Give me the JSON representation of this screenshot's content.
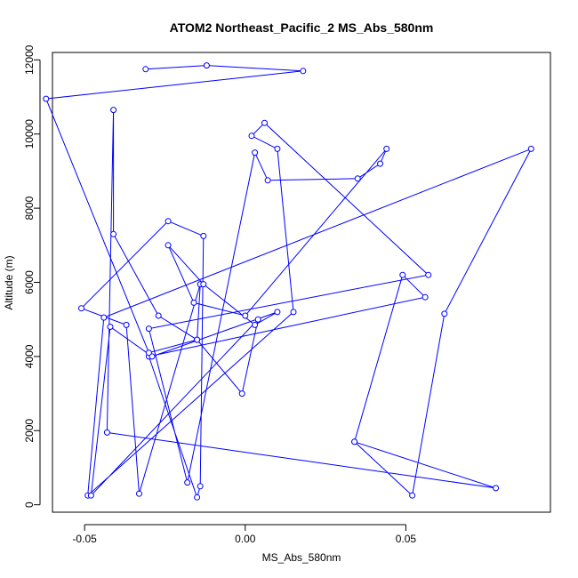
{
  "chart_data": {
    "type": "line",
    "title": "ATOM2 Northeast_Pacific_2 MS_Abs_580nm",
    "xlabel": "MS_Abs_580nm",
    "ylabel": "Altitude (m)",
    "xlim": [
      -0.06,
      0.095
    ],
    "ylim": [
      -200,
      12200
    ],
    "xticks": [
      -0.05,
      0.0,
      0.05
    ],
    "xtick_labels": [
      "-0.05",
      "0.00",
      "0.05"
    ],
    "yticks": [
      0,
      2000,
      4000,
      6000,
      8000,
      10000,
      12000
    ],
    "ytick_labels": [
      "0",
      "2000",
      "4000",
      "6000",
      "8000",
      "10000",
      "12000"
    ],
    "grid": false,
    "series": [
      {
        "color": "#0000ff",
        "marker": "open-circle",
        "x": [
          0.034,
          0.078,
          -0.043,
          -0.041,
          -0.041,
          -0.027,
          -0.015,
          -0.014,
          -0.033,
          -0.037,
          -0.051,
          -0.024,
          -0.013,
          -0.014,
          -0.015,
          -0.03,
          0.056,
          0.049,
          0.034,
          0.052,
          0.062,
          0.089,
          -0.044,
          -0.049,
          0.015,
          0.01,
          0.002,
          0.006,
          0.057,
          -0.03,
          -0.018,
          0.003,
          0.007,
          0.035,
          0.042,
          0.044,
          0.0,
          -0.016,
          -0.024,
          -0.013,
          0.003,
          0.01,
          -0.029,
          -0.042,
          -0.048,
          0.004,
          -0.001,
          -0.015,
          -0.03,
          -0.062,
          0.018,
          -0.012,
          -0.031
        ],
        "y": [
          1700,
          450,
          1950,
          10650,
          7300,
          5100,
          4450,
          5950,
          300,
          4850,
          5300,
          7650,
          7250,
          500,
          200,
          4000,
          5600,
          6200,
          1700,
          250,
          5150,
          9600,
          5050,
          250,
          5200,
          9600,
          9950,
          10300,
          6200,
          4750,
          600,
          9500,
          8750,
          8800,
          9200,
          9600,
          5100,
          5450,
          7000,
          5950,
          4850,
          5200,
          4000,
          4800,
          250,
          5000,
          3000,
          4450,
          4100,
          10950,
          11700,
          11850,
          11750
        ]
      }
    ]
  }
}
